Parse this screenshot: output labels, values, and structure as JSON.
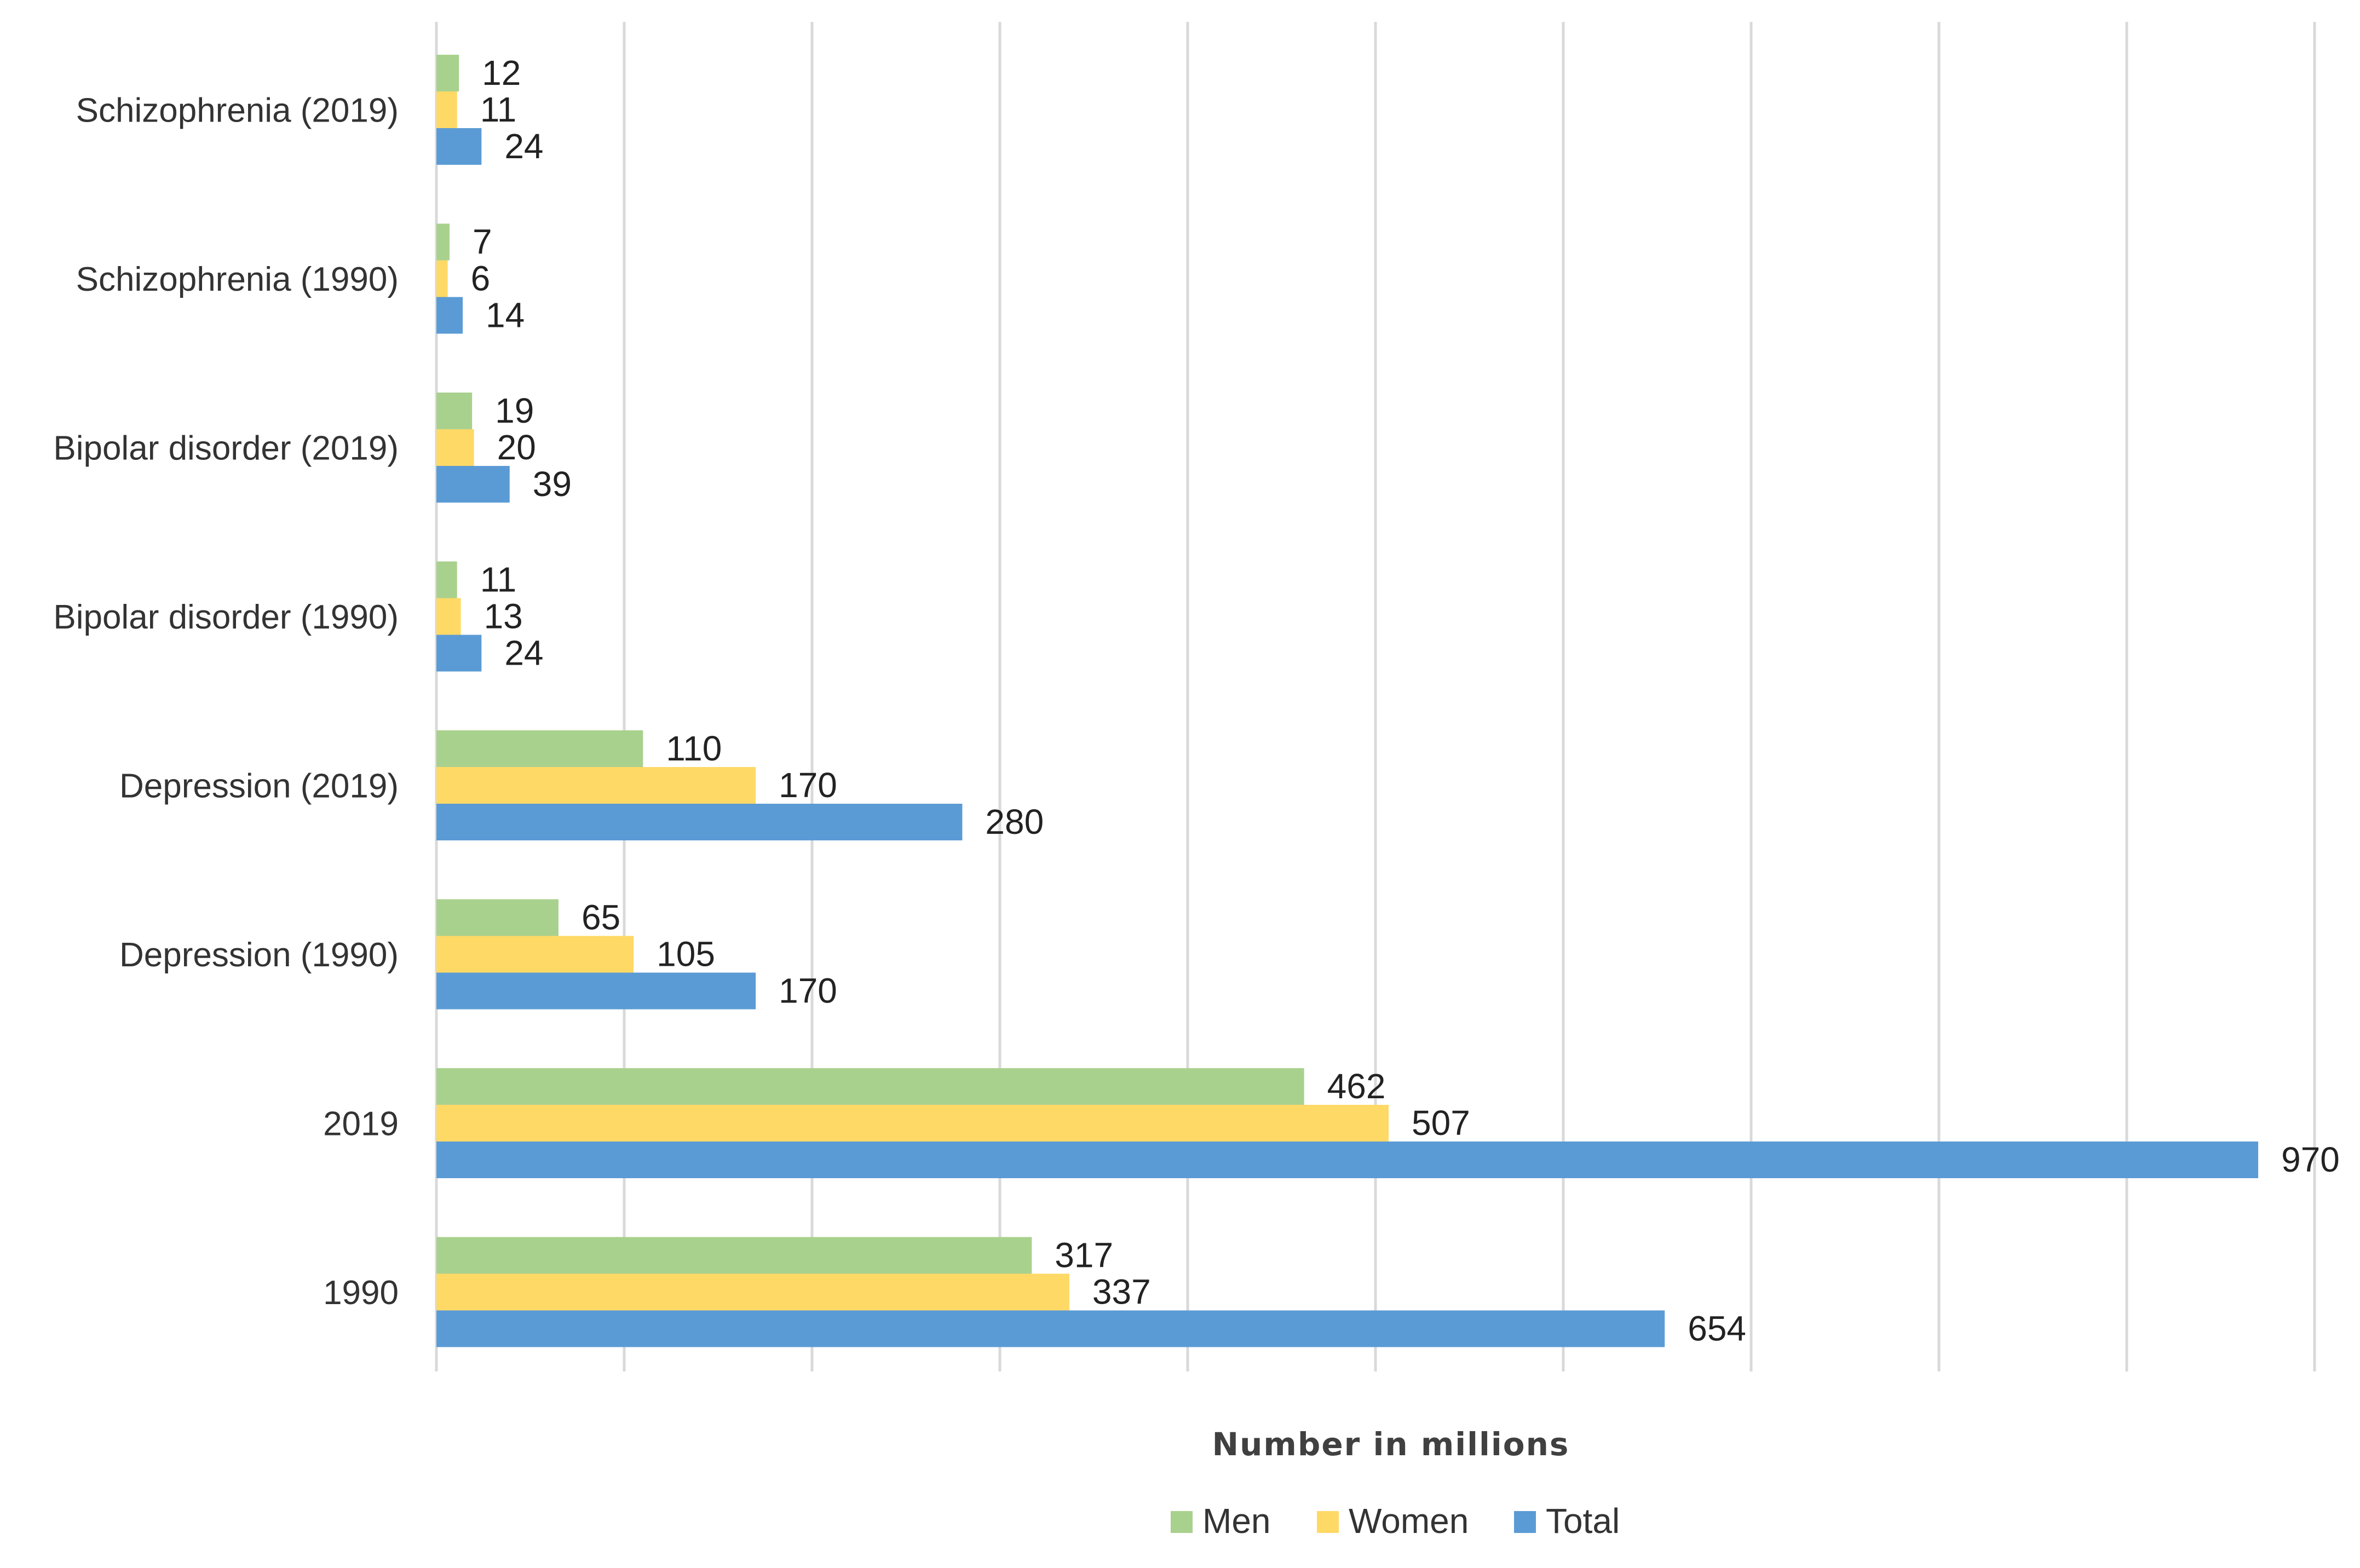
{
  "chart_data": {
    "type": "bar",
    "orientation": "horizontal",
    "title": "",
    "xlabel": "Number in millions",
    "ylabel": "",
    "xlim": [
      0,
      1000
    ],
    "grid": true,
    "legend_position": "bottom",
    "categories": [
      "Schizophrenia (2019)",
      "Schizophrenia (1990)",
      "Bipolar disorder (2019)",
      "Bipolar disorder (1990)",
      "Depression  (2019)",
      "Depression (1990)",
      "2019",
      "1990"
    ],
    "series": [
      {
        "name": "Men",
        "color": "#A9D18E",
        "values": [
          12,
          7,
          19,
          11,
          110,
          65,
          462,
          317
        ]
      },
      {
        "name": "Women",
        "color": "#FFD966",
        "values": [
          11,
          6,
          20,
          13,
          170,
          105,
          507,
          337
        ]
      },
      {
        "name": "Total",
        "color": "#5B9BD5",
        "values": [
          24,
          14,
          39,
          24,
          280,
          170,
          970,
          654
        ]
      }
    ]
  }
}
